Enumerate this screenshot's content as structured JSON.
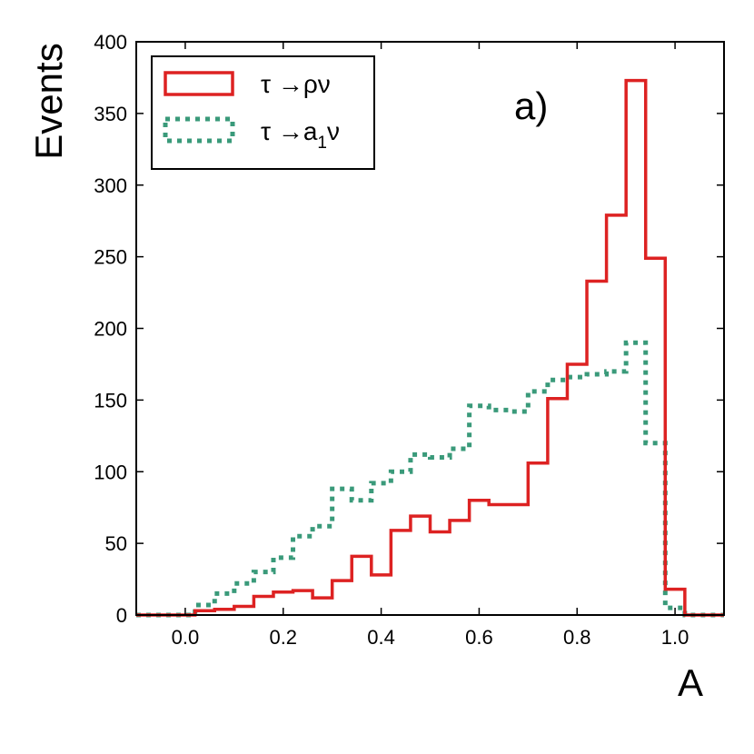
{
  "chart_data": {
    "type": "histogram",
    "title": "",
    "xlabel": "A",
    "ylabel": "Events",
    "xlim": [
      -0.1,
      1.1
    ],
    "ylim": [
      0,
      400
    ],
    "xticks": [
      "0.0",
      "0.2",
      "0.4",
      "0.6",
      "0.8",
      "1.0"
    ],
    "yticks": [
      "0",
      "50",
      "100",
      "150",
      "200",
      "250",
      "300",
      "350",
      "400"
    ],
    "annotation": "a)",
    "legend": {
      "position": "top-left"
    },
    "series": [
      {
        "name": "τ →ρν",
        "label_main": "τ →ρν",
        "color": "#dd2222",
        "style": "solid",
        "edges": [
          -0.1,
          0.02,
          0.06,
          0.1,
          0.14,
          0.18,
          0.22,
          0.26,
          0.3,
          0.34,
          0.38,
          0.42,
          0.46,
          0.5,
          0.54,
          0.58,
          0.62,
          0.66,
          0.7,
          0.74,
          0.78,
          0.82,
          0.86,
          0.9,
          0.94,
          0.98,
          1.02,
          1.1
        ],
        "values": [
          0,
          3,
          4,
          6,
          13,
          16,
          17,
          12,
          24,
          41,
          28,
          59,
          69,
          58,
          66,
          80,
          77,
          77,
          106,
          151,
          175,
          233,
          279,
          373,
          249,
          18,
          0
        ]
      },
      {
        "name": "τ →a1ν",
        "label_main": "τ →a",
        "label_sub": "1",
        "label_tail": "ν",
        "color": "#3a9a7a",
        "style": "dotted",
        "edges": [
          -0.1,
          0.02,
          0.06,
          0.1,
          0.14,
          0.18,
          0.22,
          0.26,
          0.3,
          0.34,
          0.38,
          0.42,
          0.46,
          0.5,
          0.54,
          0.58,
          0.62,
          0.66,
          0.7,
          0.74,
          0.78,
          0.82,
          0.86,
          0.9,
          0.94,
          0.98,
          1.02,
          1.1
        ],
        "values": [
          0,
          7,
          15,
          22,
          30,
          40,
          55,
          62,
          88,
          80,
          92,
          100,
          112,
          110,
          116,
          146,
          143,
          142,
          156,
          164,
          166,
          168,
          170,
          190,
          120,
          5,
          0
        ]
      }
    ]
  }
}
